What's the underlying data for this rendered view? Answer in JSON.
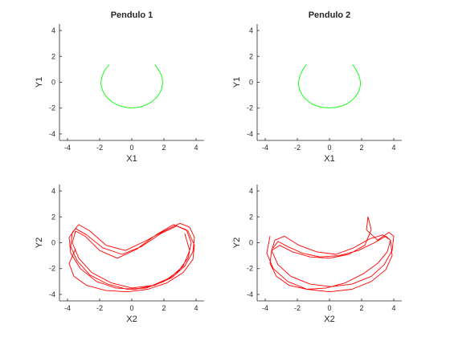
{
  "chart_data": [
    {
      "type": "line",
      "title": "Pendulo 1",
      "xlabel": "X1",
      "ylabel": "Y1",
      "xlim": [
        -4.5,
        4.5
      ],
      "ylim": [
        -4.5,
        4.5
      ],
      "xticks": [
        -4,
        -2,
        0,
        2,
        4
      ],
      "yticks": [
        -4,
        -2,
        0,
        2,
        4
      ],
      "grid": false,
      "series": [
        {
          "color": "#00ff00",
          "x": [
            -1.4,
            -1.55,
            -1.7,
            -1.8,
            -1.88,
            -1.92,
            -1.9,
            -1.82,
            -1.68,
            -1.48,
            -1.22,
            -0.92,
            -0.6,
            -0.28,
            0.0,
            0.3,
            0.62,
            0.95,
            1.25,
            1.5,
            1.7,
            1.83,
            1.9,
            1.92,
            1.88,
            1.78,
            1.62,
            1.45
          ],
          "y": [
            1.35,
            1.15,
            0.9,
            0.6,
            0.3,
            0.0,
            -0.3,
            -0.62,
            -0.95,
            -1.25,
            -1.52,
            -1.74,
            -1.88,
            -1.96,
            -1.98,
            -1.96,
            -1.88,
            -1.72,
            -1.5,
            -1.22,
            -0.92,
            -0.6,
            -0.28,
            0.05,
            0.38,
            0.7,
            1.05,
            1.35
          ]
        }
      ]
    },
    {
      "type": "line",
      "title": "Pendulo 2",
      "xlabel": "X1",
      "ylabel": "Y1",
      "xlim": [
        -4.5,
        4.5
      ],
      "ylim": [
        -4.5,
        4.5
      ],
      "xticks": [
        -4,
        -2,
        0,
        2,
        4
      ],
      "yticks": [
        -4,
        -2,
        0,
        2,
        4
      ],
      "grid": false,
      "series": [
        {
          "color": "#00ff00",
          "x": [
            -1.45,
            -1.62,
            -1.76,
            -1.86,
            -1.92,
            -1.92,
            -1.86,
            -1.74,
            -1.56,
            -1.32,
            -1.04,
            -0.72,
            -0.38,
            0.0,
            0.38,
            0.72,
            1.04,
            1.32,
            1.56,
            1.74,
            1.86,
            1.92,
            1.92,
            1.86,
            1.76,
            1.62,
            1.45
          ],
          "y": [
            1.35,
            1.05,
            0.72,
            0.4,
            0.08,
            -0.25,
            -0.58,
            -0.9,
            -1.2,
            -1.48,
            -1.7,
            -1.86,
            -1.95,
            -1.98,
            -1.95,
            -1.86,
            -1.7,
            -1.48,
            -1.2,
            -0.9,
            -0.58,
            -0.25,
            0.08,
            0.4,
            0.72,
            1.05,
            1.35
          ]
        }
      ]
    },
    {
      "type": "line",
      "title": "",
      "xlabel": "X2",
      "ylabel": "Y2",
      "xlim": [
        -4.5,
        4.5
      ],
      "ylim": [
        -4.5,
        4.5
      ],
      "xticks": [
        -4,
        -2,
        0,
        2,
        4
      ],
      "yticks": [
        -4,
        -2,
        0,
        2,
        4
      ],
      "grid": false,
      "series": [
        {
          "color": "#ff0000",
          "x": [
            -3.5,
            -3.9,
            -3.6,
            -2.8,
            -1.6,
            -0.3,
            1.0,
            2.2,
            3.2,
            3.8,
            3.9,
            3.5,
            2.8,
            1.8,
            0.6,
            -0.6,
            -1.8,
            -2.8,
            -3.5,
            -3.9,
            -3.8,
            -3.2,
            -2.2,
            -1.0,
            0.2,
            1.4,
            2.5,
            3.3,
            3.8,
            3.9,
            3.6,
            3.0,
            2.0,
            0.8,
            -0.4,
            -1.6,
            -2.6,
            -3.3,
            -3.7,
            -3.8,
            -3.4,
            -2.6,
            -1.5,
            -0.3,
            0.9,
            2.0,
            2.9,
            3.5,
            3.7,
            3.4,
            2.6,
            1.5,
            0.3,
            -0.9,
            -2.0,
            -2.9,
            -3.5,
            -3.7,
            -3.3,
            -2.5,
            -1.3,
            0.0,
            1.3,
            2.4,
            3.2,
            3.6,
            3.3
          ],
          "y": [
            -0.5,
            -1.6,
            -2.6,
            -3.3,
            -3.7,
            -3.8,
            -3.6,
            -3.1,
            -2.3,
            -1.3,
            -0.2,
            0.9,
            1.3,
            0.7,
            -0.3,
            -0.9,
            -0.4,
            0.6,
            1.1,
            0.4,
            -0.8,
            -2.0,
            -3.0,
            -3.5,
            -3.6,
            -3.3,
            -2.7,
            -1.8,
            -0.7,
            0.4,
            1.2,
            1.5,
            0.9,
            0.1,
            -0.6,
            -0.2,
            0.9,
            1.4,
            0.8,
            -0.3,
            -1.4,
            -2.5,
            -3.2,
            -3.6,
            -3.5,
            -3.0,
            -2.2,
            -1.2,
            0.0,
            1.0,
            1.4,
            0.6,
            -0.5,
            -1.2,
            -0.6,
            0.5,
            0.9,
            0.0,
            -1.2,
            -2.3,
            -3.1,
            -3.5,
            -3.3,
            -2.7,
            -1.8,
            -0.6,
            0.7
          ]
        }
      ]
    },
    {
      "type": "line",
      "title": "",
      "xlabel": "X2",
      "ylabel": "Y2",
      "xlim": [
        -4.5,
        4.5
      ],
      "ylim": [
        -4.5,
        4.5
      ],
      "xticks": [
        -4,
        -2,
        0,
        2,
        4
      ],
      "yticks": [
        -4,
        -2,
        0,
        2,
        4
      ],
      "grid": false,
      "series": [
        {
          "color": "#ff0000",
          "x": [
            -3.7,
            -3.9,
            -3.5,
            -2.6,
            -1.4,
            0.0,
            1.4,
            2.6,
            3.5,
            3.9,
            3.8,
            3.3,
            2.5,
            1.5,
            0.4,
            -0.8,
            -1.9,
            -2.8,
            -3.4,
            -3.6,
            -3.2,
            -2.4,
            -1.2,
            0.1,
            1.4,
            2.6,
            3.4,
            3.9,
            4.0,
            3.7,
            3.0,
            2.3,
            2.4,
            2.6,
            2.2,
            1.2,
            0.0,
            -1.2,
            -2.3,
            -3.1,
            -3.6,
            -3.7,
            -3.3,
            -2.5,
            -1.4,
            -0.2,
            1.0,
            2.1,
            3.0,
            3.6,
            3.8,
            3.5,
            2.8,
            1.8,
            0.6,
            -0.6,
            -1.7,
            -2.6,
            -3.2,
            -3.5
          ],
          "y": [
            0.5,
            -0.8,
            -2.0,
            -3.0,
            -3.6,
            -3.8,
            -3.6,
            -3.0,
            -2.1,
            -1.0,
            0.2,
            0.6,
            0.3,
            -0.4,
            -0.9,
            -0.7,
            -0.2,
            0.5,
            0.2,
            -0.6,
            -1.7,
            -2.6,
            -3.2,
            -3.4,
            -3.2,
            -2.6,
            -1.7,
            -0.6,
            0.5,
            0.8,
            0.2,
            1.0,
            2.0,
            1.0,
            -0.2,
            -0.9,
            -1.2,
            -1.1,
            -0.7,
            -0.2,
            -0.6,
            -1.6,
            -2.6,
            -3.3,
            -3.6,
            -3.5,
            -3.1,
            -2.4,
            -1.6,
            -0.7,
            0.2,
            0.5,
            0.0,
            -0.6,
            -1.0,
            -1.1,
            -0.8,
            -0.3,
            0.1,
            -0.4
          ]
        }
      ]
    }
  ]
}
